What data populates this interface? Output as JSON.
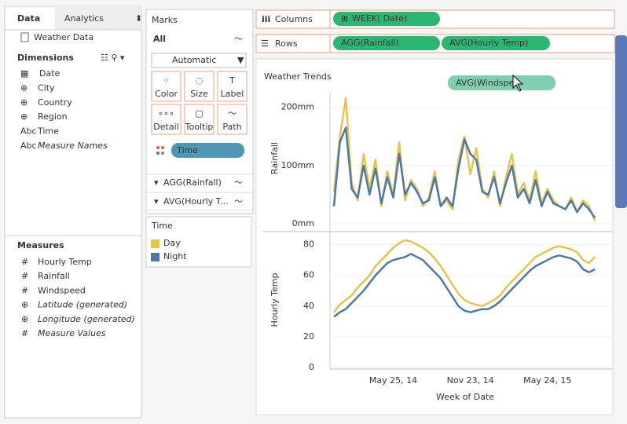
{
  "data_pane": {
    "tabs": [
      "Data",
      "Analytics"
    ],
    "source": "Weather Data",
    "dimensions_title": "Dimensions",
    "dimensions": [
      "Date",
      "City",
      "Country",
      "Region",
      "Time",
      "Measure Names"
    ],
    "measures_title": "Measures",
    "measures": [
      "Hourly Temp",
      "Rainfall",
      "Windspeed",
      "Latitude (generated)",
      "Longitude (generated)",
      "Measure Values"
    ]
  },
  "marks": {
    "title": "Marks",
    "all": "All",
    "mark_type": "Automatic",
    "buttons": [
      "Color",
      "Size",
      "Label",
      "Detail",
      "Tooltip",
      "Path"
    ],
    "pill": "Time",
    "sections": [
      "AGG(Rainfall)",
      "AVG(Hourly T..."
    ]
  },
  "legend": {
    "title": "Time"
  },
  "shelves": {
    "columns_label": "Columns",
    "columns": [
      "WEEK( Date)"
    ],
    "rows_label": "Rows",
    "rows": [
      "AGG(Rainfall)",
      "AVG(Hourly Temp)"
    ],
    "drag_pill": "AVG(Windspe"
  },
  "chart_data": {
    "type": "line",
    "title": "Weather Trends",
    "x_label": "Week of Date",
    "categories": [
      null,
      null,
      null,
      null,
      null,
      null,
      null,
      null,
      null,
      null,
      "May 25, 14",
      null,
      null,
      null,
      null,
      null,
      null,
      null,
      null,
      null,
      null,
      null,
      null,
      "Nov 23, 14",
      null,
      null,
      null,
      null,
      null,
      null,
      null,
      null,
      null,
      null,
      null,
      null,
      "May 24, 15",
      null,
      null,
      null,
      null,
      null,
      null,
      null,
      null
    ],
    "panels": [
      {
        "y_label": "Rainfall",
        "ylim": [
          0,
          225
        ],
        "yticks": [
          {
            "value": 0,
            "label": "0mm"
          },
          {
            "value": 100,
            "label": "100mm"
          },
          {
            "value": 200,
            "label": "200mm"
          }
        ],
        "series": [
          {
            "name": "Day",
            "color": "#e3c54a",
            "values": [
              55,
              150,
              215,
              70,
              40,
              120,
              60,
              110,
              30,
              90,
              50,
              140,
              40,
              75,
              60,
              30,
              45,
              90,
              30,
              40,
              25,
              110,
              150,
              85,
              130,
              60,
              45,
              90,
              30,
              80,
              120,
              50,
              70,
              40,
              90,
              35,
              60,
              40,
              30,
              25,
              45,
              20,
              40,
              30,
              5
            ]
          },
          {
            "name": "Night",
            "color": "#4e79a7",
            "values": [
              30,
              140,
              165,
              60,
              45,
              100,
              50,
              95,
              35,
              80,
              45,
              120,
              50,
              70,
              55,
              35,
              40,
              80,
              30,
              45,
              30,
              95,
              145,
              120,
              110,
              55,
              50,
              80,
              35,
              70,
              100,
              45,
              60,
              35,
              75,
              30,
              55,
              35,
              30,
              25,
              40,
              20,
              35,
              25,
              10
            ]
          }
        ]
      },
      {
        "y_label": "Hourly Temp",
        "ylim": [
          0,
          88
        ],
        "yticks": [
          0,
          20,
          40,
          60,
          80
        ],
        "series": [
          {
            "name": "Day",
            "color": "#e3c54a",
            "values": [
              36,
              41,
              44,
              47,
              52,
              56,
              60,
              66,
              70,
              74,
              78,
              81,
              83,
              82,
              80,
              78,
              75,
              71,
              66,
              60,
              54,
              48,
              44,
              42,
              41,
              40,
              42,
              44,
              47,
              52,
              56,
              60,
              64,
              68,
              72,
              74,
              76,
              78,
              79,
              78,
              77,
              75,
              70,
              68,
              72
            ]
          },
          {
            "name": "Night",
            "color": "#4e79a7",
            "values": [
              33,
              36,
              38,
              42,
              46,
              50,
              55,
              60,
              64,
              68,
              70,
              71,
              72,
              74,
              72,
              70,
              66,
              62,
              58,
              52,
              46,
              40,
              37,
              36,
              37,
              38,
              38,
              40,
              43,
              47,
              51,
              55,
              59,
              63,
              66,
              68,
              70,
              72,
              73,
              72,
              71,
              69,
              64,
              62,
              64
            ]
          }
        ]
      }
    ]
  }
}
